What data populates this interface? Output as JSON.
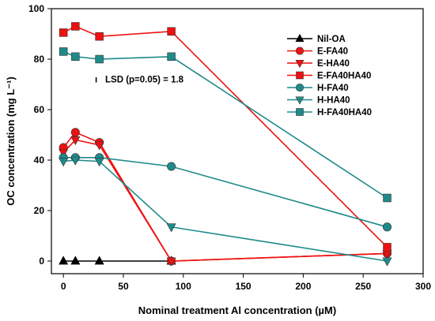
{
  "chart_data": {
    "type": "line",
    "xlabel": "Nominal treatment Al concentration (µM)",
    "ylabel": "OC concentration (mg L⁻¹)",
    "xlim": [
      -10,
      300
    ],
    "ylim": [
      -5,
      100
    ],
    "xticks": [
      0,
      50,
      100,
      150,
      200,
      250,
      300
    ],
    "yticks": [
      0,
      20,
      40,
      60,
      80,
      100
    ],
    "legend_position": "top-right",
    "annotation": {
      "symbol": "ı",
      "text": "LSD (p=0.05) = 1.8",
      "x": 90,
      "y": 72
    },
    "series": [
      {
        "name": "Nil-OA",
        "marker": "triangle-up",
        "color": "#000000",
        "x": [
          0,
          10,
          30,
          90
        ],
        "y": [
          0,
          0,
          0,
          0
        ]
      },
      {
        "name": "E-FA40",
        "marker": "circle",
        "color": "#ee1111",
        "x": [
          0,
          10,
          30,
          90,
          270
        ],
        "y": [
          45,
          51,
          47,
          0,
          3
        ]
      },
      {
        "name": "E-HA40",
        "marker": "triangle-down",
        "color": "#ee1111",
        "x": [
          0,
          10,
          30,
          90,
          270
        ],
        "y": [
          43,
          48,
          46,
          0,
          3
        ]
      },
      {
        "name": "E-FA40HA40",
        "marker": "square",
        "color": "#ee1111",
        "x": [
          0,
          10,
          30,
          90,
          270
        ],
        "y": [
          90.5,
          93,
          89,
          91,
          5.5
        ]
      },
      {
        "name": "H-FA40",
        "marker": "circle",
        "color": "#1f8a8a",
        "x": [
          0,
          10,
          30,
          90,
          270
        ],
        "y": [
          41,
          41,
          41,
          37.5,
          13.5
        ]
      },
      {
        "name": "H-HA40",
        "marker": "triangle-down",
        "color": "#1f8a8a",
        "x": [
          0,
          10,
          30,
          90,
          270
        ],
        "y": [
          39.5,
          40,
          39.5,
          13.5,
          0
        ]
      },
      {
        "name": "H-FA40HA40",
        "marker": "square",
        "color": "#1f8a8a",
        "x": [
          0,
          10,
          30,
          90,
          270
        ],
        "y": [
          83,
          81,
          80,
          81,
          25
        ]
      }
    ]
  }
}
